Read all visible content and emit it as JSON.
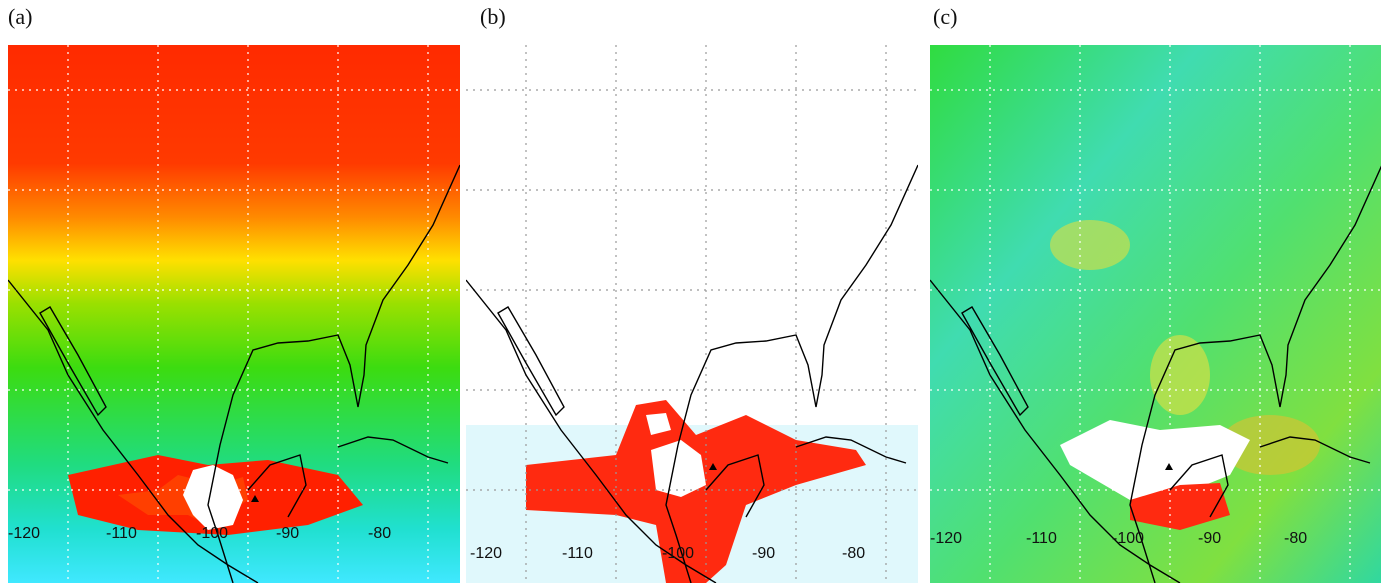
{
  "panels": [
    {
      "label": "(a)",
      "lon_labels": [
        -120,
        -110,
        -100,
        -90,
        -80
      ]
    },
    {
      "label": "(b)",
      "lon_labels": [
        -120,
        -110,
        -100,
        -90,
        -80
      ]
    },
    {
      "label": "(c)",
      "lon_labels": [
        -120,
        -110,
        -100,
        -90,
        -80
      ]
    }
  ]
}
